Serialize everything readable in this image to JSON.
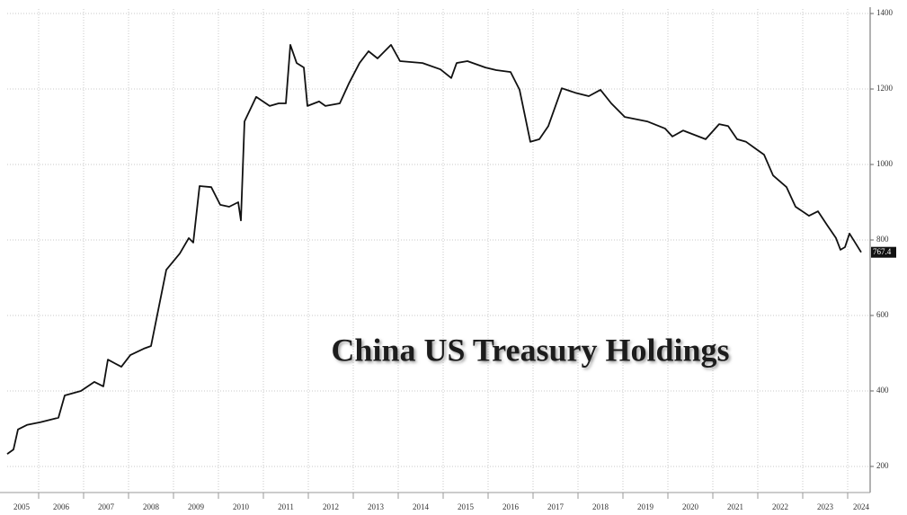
{
  "chart_data": {
    "type": "line",
    "annotation": "China US Treasury Holdings",
    "series": [
      {
        "name": "China US Treasury Holdings",
        "color": "#111111",
        "x": [
          2005.3,
          2005.44,
          2005.54,
          2005.74,
          2006.04,
          2006.44,
          2006.58,
          2006.94,
          2007.24,
          2007.44,
          2007.54,
          2007.84,
          2008.04,
          2008.34,
          2008.5,
          2008.64,
          2008.84,
          2009.14,
          2009.34,
          2009.44,
          2009.58,
          2009.84,
          2010.04,
          2010.24,
          2010.44,
          2010.5,
          2010.58,
          2010.84,
          2011.14,
          2011.34,
          2011.5,
          2011.6,
          2011.74,
          2011.9,
          2011.98,
          2012.24,
          2012.38,
          2012.7,
          2012.9,
          2013.14,
          2013.34,
          2013.54,
          2013.84,
          2014.04,
          2014.54,
          2014.94,
          2015.18,
          2015.3,
          2015.54,
          2015.94,
          2016.18,
          2016.5,
          2016.7,
          2016.94,
          2017.14,
          2017.34,
          2017.64,
          2017.94,
          2018.24,
          2018.5,
          2018.74,
          2019.04,
          2019.54,
          2019.94,
          2020.1,
          2020.34,
          2020.84,
          2021.14,
          2021.34,
          2021.54,
          2021.74,
          2021.94,
          2022.14,
          2022.34,
          2022.64,
          2022.84,
          2023.14,
          2023.34,
          2023.54,
          2023.74,
          2023.84,
          2023.94,
          2024.04,
          2024.14,
          2024.3
        ],
        "values": [
          233,
          245,
          298,
          310,
          317,
          329,
          388,
          400,
          424,
          412,
          483,
          464,
          495,
          512,
          519,
          602,
          721,
          764,
          805,
          793,
          943,
          940,
          893,
          888,
          900,
          852,
          1114,
          1179,
          1155,
          1162,
          1162,
          1317,
          1269,
          1257,
          1155,
          1167,
          1155,
          1162,
          1214,
          1269,
          1300,
          1281,
          1317,
          1274,
          1269,
          1252,
          1229,
          1269,
          1274,
          1257,
          1250,
          1245,
          1198,
          1060,
          1067,
          1102,
          1202,
          1190,
          1181,
          1198,
          1162,
          1126,
          1114,
          1095,
          1074,
          1090,
          1067,
          1107,
          1102,
          1067,
          1060,
          1043,
          1026,
          971,
          940,
          888,
          864,
          876,
          840,
          805,
          774,
          781,
          817,
          798,
          767.4
        ]
      }
    ],
    "xlim": [
      2005.3,
      2024.5
    ],
    "xticks": [
      2005,
      2006,
      2007,
      2008,
      2009,
      2010,
      2011,
      2012,
      2013,
      2014,
      2015,
      2016,
      2017,
      2018,
      2019,
      2020,
      2021,
      2022,
      2023,
      2024
    ],
    "ylim": [
      138,
      1412
    ],
    "yticks": [
      200,
      400,
      600,
      800,
      1000,
      1200,
      1400
    ],
    "grid": true
  }
}
